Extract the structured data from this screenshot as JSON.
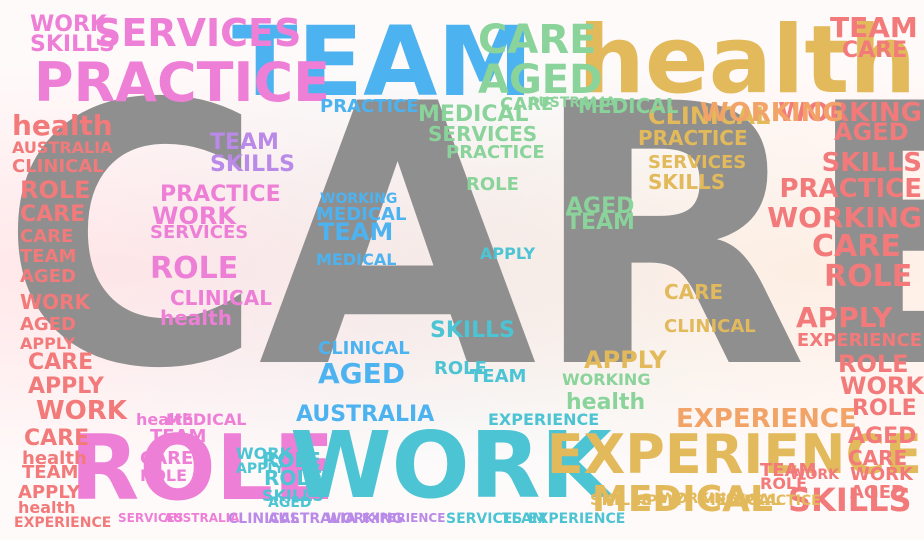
{
  "cloud": {
    "words": {
      "care": "CARE",
      "team": "TEAM",
      "health": "health",
      "practice": "PRACTICE",
      "services": "SERVICES",
      "role": "ROLE",
      "work": "WORK",
      "experience": "EXPERIENCE",
      "medical": "MEDICAL",
      "skills": "SKILLS",
      "aged": "AGED",
      "clinical": "CLINICAL",
      "working": "WORKING",
      "australia": "AUSTRALIA",
      "apply": "APPLY"
    },
    "colors": {
      "gray": "#8f8f8f",
      "blue": "#4db3f0",
      "teal": "#4cc4d4",
      "gold": "#e2b95b",
      "pink": "#ee7fd6",
      "red": "#f27a7a",
      "green": "#8ad39a",
      "orange": "#f2a368",
      "purple": "#b98ae8"
    }
  }
}
